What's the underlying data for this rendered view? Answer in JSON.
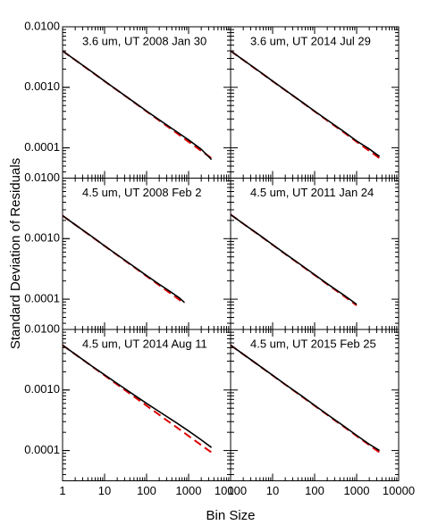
{
  "xlabel": "Bin Size",
  "ylabel": "Standard Deviation of Residuals",
  "chart_data": [
    {
      "type": "line",
      "annotation": "3.6 um, UT 2008 Jan 30",
      "xlog": true,
      "ylog": true,
      "xlim": [
        1,
        10000
      ],
      "ylim": [
        3.16e-05,
        0.01
      ],
      "yticks": [
        {
          "value": 0.01,
          "label": "0.0100"
        },
        {
          "value": 0.001,
          "label": "0.0010"
        },
        {
          "value": 0.0001,
          "label": "0.0001"
        }
      ],
      "x": [
        1,
        2,
        5,
        10,
        20,
        50,
        100,
        200,
        500,
        1000,
        2000,
        3500
      ],
      "series": [
        {
          "color": "#000000",
          "values": [
            0.004,
            0.00284,
            0.0018,
            0.00127,
            0.0009,
            0.00057,
            0.000405,
            0.00029,
            0.000188,
            0.000135,
            9.5e-05,
            6.4e-05
          ]
        },
        {
          "color": "#dd0000",
          "dashed": true,
          "values": [
            0.004,
            0.00283,
            0.00179,
            0.00126,
            0.000894,
            0.000566,
            0.0004,
            0.000283,
            0.000179,
            0.000126,
            8.94e-05,
            6.76e-05
          ]
        }
      ]
    },
    {
      "type": "line",
      "annotation": "3.6 um, UT 2014 Jul 29",
      "xlog": true,
      "ylog": true,
      "xlim": [
        1,
        10000
      ],
      "ylim": [
        3.16e-05,
        0.01
      ],
      "x": [
        1,
        2,
        5,
        10,
        20,
        50,
        100,
        200,
        500,
        1000,
        2000,
        3500
      ],
      "series": [
        {
          "color": "#000000",
          "values": [
            0.004,
            0.00284,
            0.0018,
            0.00127,
            0.0009,
            0.00057,
            0.000403,
            0.000288,
            0.000185,
            0.00013,
            9.6e-05,
            7.2e-05
          ]
        },
        {
          "color": "#dd0000",
          "dashed": true,
          "values": [
            0.004,
            0.00283,
            0.00179,
            0.00126,
            0.000894,
            0.000566,
            0.0004,
            0.000283,
            0.000179,
            0.000126,
            8.94e-05,
            6.76e-05
          ]
        }
      ]
    },
    {
      "type": "line",
      "annotation": "4.5 um, UT 2008 Feb 2",
      "xlog": true,
      "ylog": true,
      "xlim": [
        1,
        10000
      ],
      "ylim": [
        3.16e-05,
        0.01
      ],
      "yticks": [
        {
          "value": 0.01,
          "label": "0.0100"
        },
        {
          "value": 0.001,
          "label": "0.0010"
        },
        {
          "value": 0.0001,
          "label": "0.0001"
        }
      ],
      "x": [
        1,
        2,
        5,
        10,
        20,
        50,
        100,
        200,
        400,
        600,
        800
      ],
      "series": [
        {
          "color": "#000000",
          "values": [
            0.0024,
            0.0017,
            0.00108,
            0.00076,
            0.00054,
            0.000345,
            0.000245,
            0.000176,
            0.000128,
            0.000105,
            8.8e-05
          ]
        },
        {
          "color": "#dd0000",
          "dashed": true,
          "values": [
            0.0024,
            0.0017,
            0.00107,
            0.000759,
            0.000537,
            0.000339,
            0.00024,
            0.00017,
            0.00012,
            9.8e-05,
            8.49e-05
          ]
        }
      ]
    },
    {
      "type": "line",
      "annotation": "4.5 um, UT 2011 Jan 24",
      "xlog": true,
      "ylog": true,
      "xlim": [
        1,
        10000
      ],
      "ylim": [
        3.16e-05,
        0.01
      ],
      "x": [
        1,
        2,
        5,
        10,
        20,
        50,
        100,
        200,
        500,
        800,
        1000
      ],
      "series": [
        {
          "color": "#000000",
          "values": [
            0.0025,
            0.00177,
            0.00113,
            0.000795,
            0.000563,
            0.000358,
            0.000254,
            0.00018,
            0.000116,
            9.2e-05,
            8.2e-05
          ]
        },
        {
          "color": "#dd0000",
          "dashed": true,
          "values": [
            0.0025,
            0.00177,
            0.00112,
            0.000791,
            0.000559,
            0.000354,
            0.00025,
            0.000177,
            0.000112,
            8.84e-05,
            7.91e-05
          ]
        }
      ]
    },
    {
      "type": "line",
      "annotation": "4.5 um, UT 2014 Aug 11",
      "xlog": true,
      "ylog": true,
      "xlim": [
        1,
        10000
      ],
      "ylim": [
        3.16e-05,
        0.01
      ],
      "xticks": [
        1,
        10,
        100,
        1000,
        10000
      ],
      "yticks": [
        {
          "value": 0.01,
          "label": "0.0100"
        },
        {
          "value": 0.001,
          "label": "0.0010"
        },
        {
          "value": 0.0001,
          "label": "0.0001"
        }
      ],
      "x": [
        1,
        2,
        5,
        10,
        20,
        50,
        100,
        200,
        500,
        1000,
        2000,
        3500
      ],
      "series": [
        {
          "color": "#000000",
          "values": [
            0.0055,
            0.0039,
            0.00248,
            0.00178,
            0.00128,
            0.00083,
            0.0006,
            0.00044,
            0.00029,
            0.00021,
            0.00015,
            0.000112
          ]
        },
        {
          "color": "#dd0000",
          "dashed": true,
          "values": [
            0.0055,
            0.00389,
            0.00246,
            0.00174,
            0.00123,
            0.000778,
            0.00055,
            0.000389,
            0.000246,
            0.000174,
            0.000123,
            9.3e-05
          ]
        }
      ]
    },
    {
      "type": "line",
      "annotation": "4.5 um, UT 2015 Feb 25",
      "xlog": true,
      "ylog": true,
      "xlim": [
        1,
        10000
      ],
      "ylim": [
        3.16e-05,
        0.01
      ],
      "xticks": [
        1,
        10,
        100,
        1000,
        10000
      ],
      "x": [
        1,
        2,
        5,
        10,
        20,
        50,
        100,
        200,
        500,
        1000,
        2000,
        3500
      ],
      "series": [
        {
          "color": "#000000",
          "values": [
            0.0055,
            0.0039,
            0.00247,
            0.00175,
            0.00124,
            0.00079,
            0.000558,
            0.000396,
            0.000252,
            0.000178,
            0.000127,
            0.0001
          ]
        },
        {
          "color": "#dd0000",
          "dashed": true,
          "values": [
            0.0055,
            0.00389,
            0.00246,
            0.00174,
            0.00123,
            0.000778,
            0.00055,
            0.000389,
            0.000246,
            0.000174,
            0.000123,
            9.3e-05
          ]
        }
      ]
    }
  ]
}
